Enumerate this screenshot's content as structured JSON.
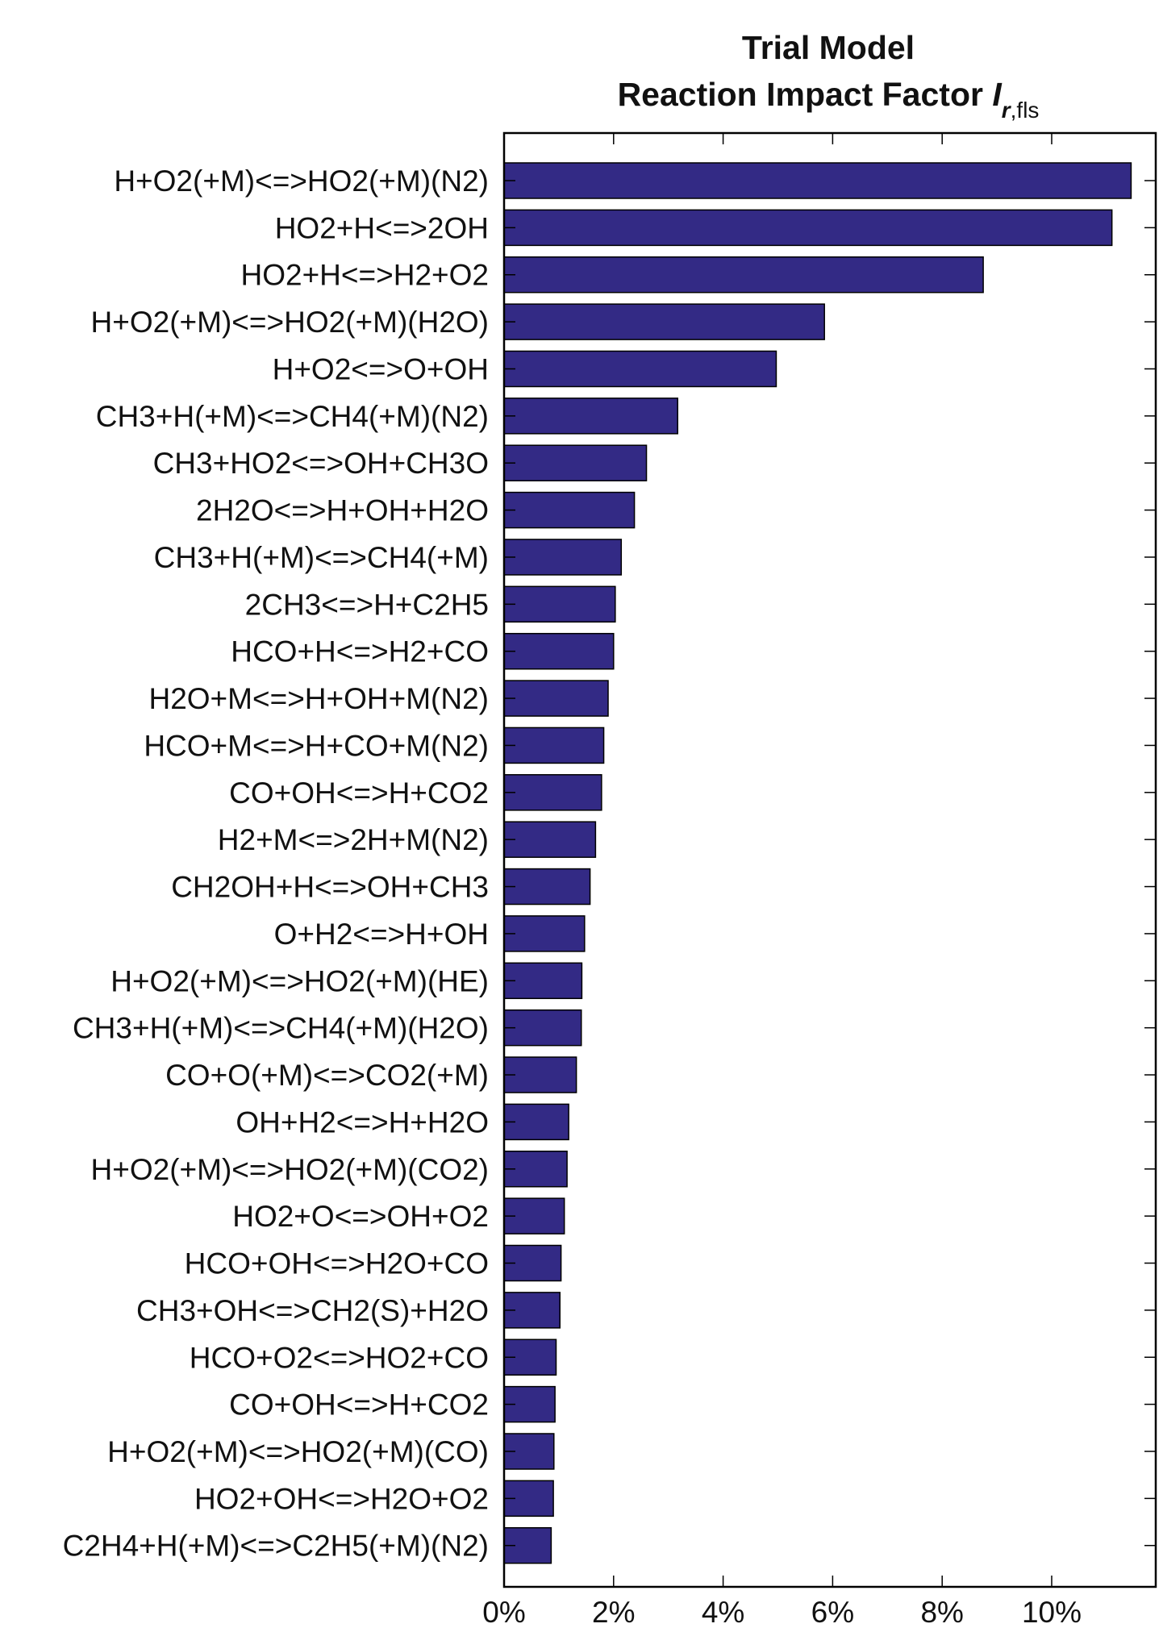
{
  "chart_data": {
    "type": "bar",
    "orientation": "horizontal",
    "title_line1": "Trial Model",
    "title_line2_prefix": "Reaction Impact Factor ",
    "title_symbol": "I",
    "title_sub_r": "r",
    "title_sub_rest": ",fls",
    "xlabel": "",
    "ylabel": "",
    "x_unit": "%",
    "xlim": [
      0,
      11.9
    ],
    "x_ticks": [
      0,
      2,
      4,
      6,
      8,
      10
    ],
    "x_tick_labels": [
      "0%",
      "2%",
      "4%",
      "6%",
      "8%",
      "10%"
    ],
    "bar_color": "#332a85",
    "bar_edge_color": "#000000",
    "grid": false,
    "legend": "none",
    "categories": [
      "H+O2(+M)<=>HO2(+M)(N2)",
      "HO2+H<=>2OH",
      "HO2+H<=>H2+O2",
      "H+O2(+M)<=>HO2(+M)(H2O)",
      "H+O2<=>O+OH",
      "CH3+H(+M)<=>CH4(+M)(N2)",
      "CH3+HO2<=>OH+CH3O",
      "2H2O<=>H+OH+H2O",
      "CH3+H(+M)<=>CH4(+M)",
      "2CH3<=>H+C2H5",
      "HCO+H<=>H2+CO",
      "H2O+M<=>H+OH+M(N2)",
      "HCO+M<=>H+CO+M(N2)",
      "CO+OH<=>H+CO2",
      "H2+M<=>2H+M(N2)",
      "CH2OH+H<=>OH+CH3",
      "O+H2<=>H+OH",
      "H+O2(+M)<=>HO2(+M)(HE)",
      "CH3+H(+M)<=>CH4(+M)(H2O)",
      "CO+O(+M)<=>CO2(+M)",
      "OH+H2<=>H+H2O",
      "H+O2(+M)<=>HO2(+M)(CO2)",
      "HO2+O<=>OH+O2",
      "HCO+OH<=>H2O+CO",
      "CH3+OH<=>CH2(S)+H2O",
      "HCO+O2<=>HO2+CO",
      "CO+OH<=>H+CO2",
      "H+O2(+M)<=>HO2(+M)(CO)",
      "HO2+OH<=>H2O+O2",
      "C2H4+H(+M)<=>C2H5(+M)(N2)"
    ],
    "values": [
      11.45,
      11.1,
      8.75,
      5.85,
      4.97,
      3.17,
      2.6,
      2.38,
      2.14,
      2.03,
      2.0,
      1.9,
      1.82,
      1.78,
      1.67,
      1.57,
      1.47,
      1.42,
      1.41,
      1.32,
      1.18,
      1.15,
      1.1,
      1.04,
      1.02,
      0.95,
      0.93,
      0.91,
      0.9,
      0.86
    ]
  }
}
